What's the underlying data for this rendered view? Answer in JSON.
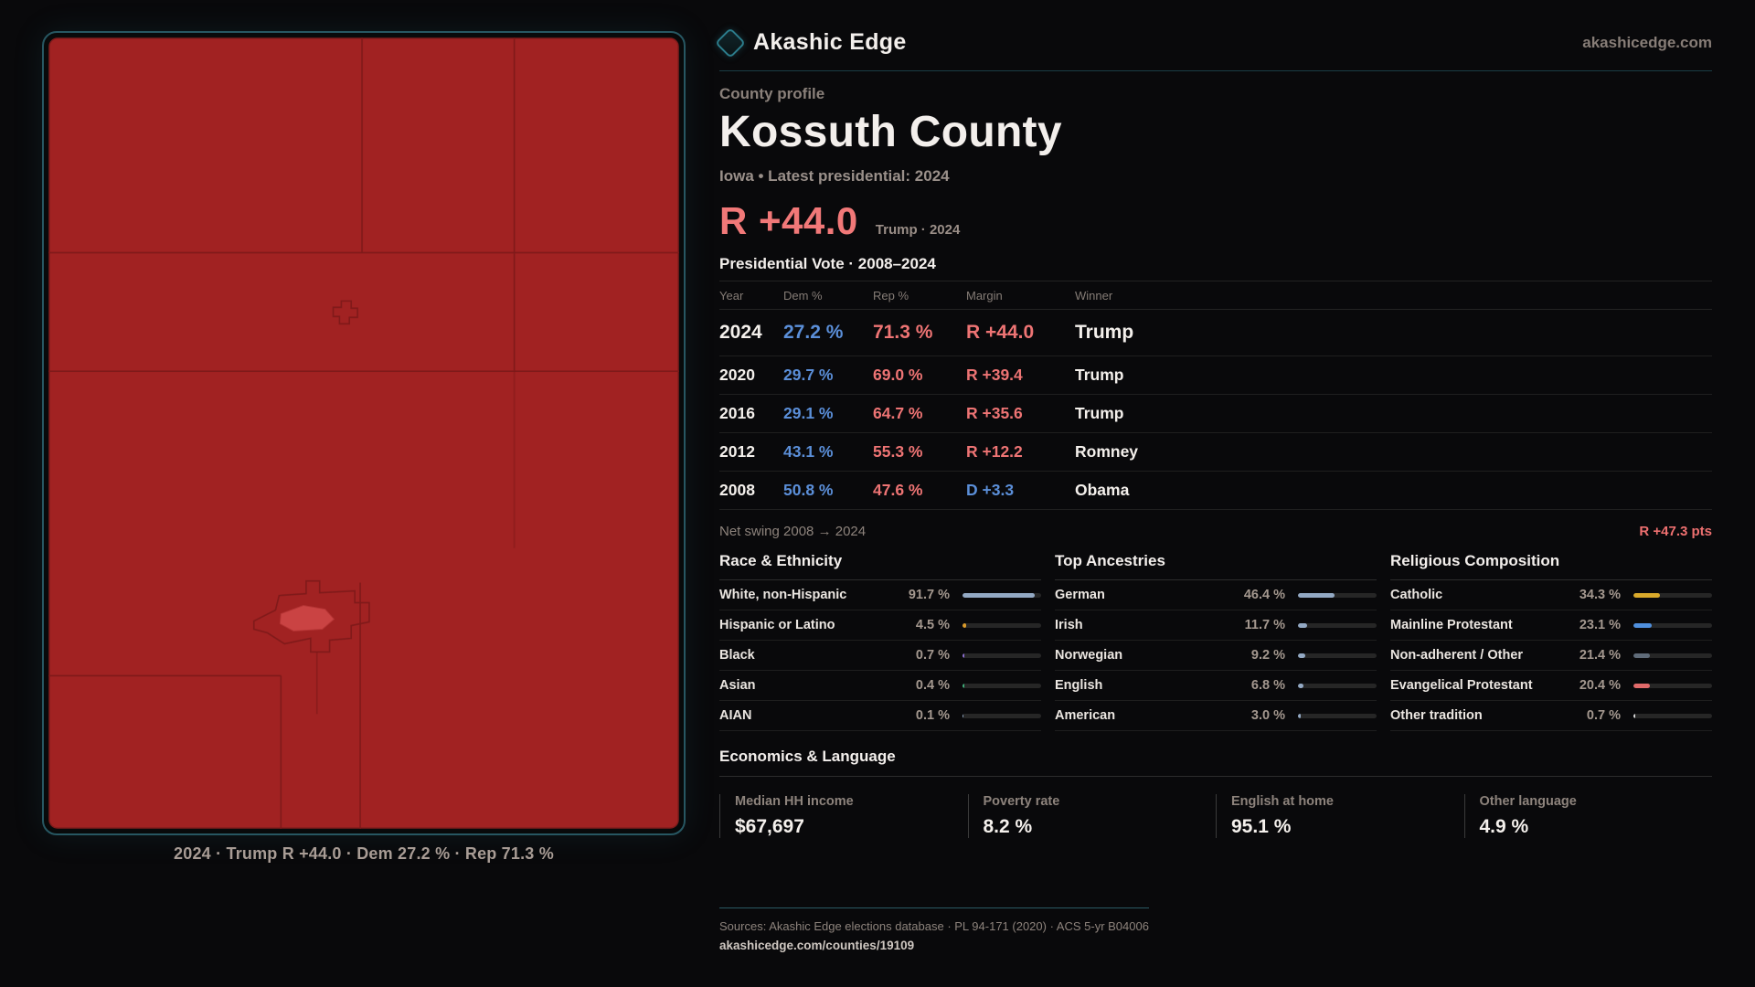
{
  "brand": {
    "name": "Akashic Edge",
    "domain": "akashicedge.com"
  },
  "map": {
    "caption": "2024 · Trump R +44.0 · Dem 27.2 % · Rep 71.3 %",
    "county_fill": "#a12222",
    "boundary_color": "#7c1a1a",
    "highlight_fill": "#ca4343",
    "frame_border": "#275762"
  },
  "profile": {
    "kicker": "County profile",
    "title": "Kossuth County",
    "subtitle": "Iowa • Latest presidential: 2024",
    "headline_margin": "R +44.0",
    "headline_margin_color": "#f17878",
    "headline_context": "Trump · 2024"
  },
  "election_table": {
    "title": "Presidential Vote · 2008–2024",
    "columns": [
      "Year",
      "Dem %",
      "Rep %",
      "Margin",
      "Winner"
    ],
    "dem_color": "#5b8fd9",
    "rep_color": "#ee7474",
    "rows": [
      {
        "year": "2024",
        "dem": "27.2 %",
        "rep": "71.3 %",
        "margin": "R +44.0",
        "winner": "Trump",
        "party": "R",
        "latest": true
      },
      {
        "year": "2020",
        "dem": "29.7 %",
        "rep": "69.0 %",
        "margin": "R +39.4",
        "winner": "Trump",
        "party": "R"
      },
      {
        "year": "2016",
        "dem": "29.1 %",
        "rep": "64.7 %",
        "margin": "R +35.6",
        "winner": "Trump",
        "party": "R"
      },
      {
        "year": "2012",
        "dem": "43.1 %",
        "rep": "55.3 %",
        "margin": "R +12.2",
        "winner": "Romney",
        "party": "R"
      },
      {
        "year": "2008",
        "dem": "50.8 %",
        "rep": "47.6 %",
        "margin": "D +3.3",
        "winner": "Obama",
        "party": "D"
      }
    ]
  },
  "net_swing": {
    "label": "Net swing 2008 → 2024",
    "value": "R +47.3 pts"
  },
  "demographics": {
    "sections": [
      {
        "title": "Race & Ethnicity",
        "rows": [
          {
            "label": "White, non-Hispanic",
            "value": "91.7 %",
            "pct": 91.7,
            "bar_color": "#93a9c4"
          },
          {
            "label": "Hispanic or Latino",
            "value": "4.5 %",
            "pct": 4.5,
            "bar_color": "#d99a2b"
          },
          {
            "label": "Black",
            "value": "0.7 %",
            "pct": 0.7,
            "bar_color": "#8d6fd1"
          },
          {
            "label": "Asian",
            "value": "0.4 %",
            "pct": 0.4,
            "bar_color": "#3fae7a"
          },
          {
            "label": "AIAN",
            "value": "0.1 %",
            "pct": 0.1,
            "bar_color": "#93a9c4"
          }
        ]
      },
      {
        "title": "Top Ancestries",
        "rows": [
          {
            "label": "German",
            "value": "46.4 %",
            "pct": 46.4,
            "bar_color": "#93a9c4"
          },
          {
            "label": "Irish",
            "value": "11.7 %",
            "pct": 11.7,
            "bar_color": "#93a9c4"
          },
          {
            "label": "Norwegian",
            "value": "9.2 %",
            "pct": 9.2,
            "bar_color": "#93a9c4"
          },
          {
            "label": "English",
            "value": "6.8 %",
            "pct": 6.8,
            "bar_color": "#93a9c4"
          },
          {
            "label": "American",
            "value": "3.0 %",
            "pct": 3.0,
            "bar_color": "#93a9c4"
          }
        ]
      },
      {
        "title": "Religious Composition",
        "rows": [
          {
            "label": "Catholic",
            "value": "34.3 %",
            "pct": 34.3,
            "bar_color": "#d9a92b"
          },
          {
            "label": "Mainline Protestant",
            "value": "23.1 %",
            "pct": 23.1,
            "bar_color": "#4f8fdd"
          },
          {
            "label": "Non-adherent / Other",
            "value": "21.4 %",
            "pct": 21.4,
            "bar_color": "#5f6b79"
          },
          {
            "label": "Evangelical Protestant",
            "value": "20.4 %",
            "pct": 20.4,
            "bar_color": "#e06a6a"
          },
          {
            "label": "Other tradition",
            "value": "0.7 %",
            "pct": 0.7,
            "bar_color": "#d8d8d8"
          }
        ]
      }
    ]
  },
  "economics": {
    "title": "Economics & Language",
    "stats": [
      {
        "label": "Median HH income",
        "value": "$67,697"
      },
      {
        "label": "Poverty rate",
        "value": "8.2 %"
      },
      {
        "label": "English at home",
        "value": "95.1 %"
      },
      {
        "label": "Other language",
        "value": "4.9 %"
      }
    ]
  },
  "footer": {
    "sources": "Sources: Akashic Edge elections database · PL 94-171 (2020) · ACS 5-yr B04006",
    "permalink": "akashicedge.com/counties/19109"
  }
}
